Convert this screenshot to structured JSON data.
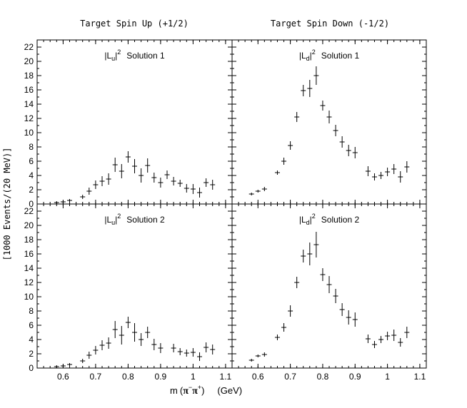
{
  "column_headers": [
    "Target Spin Up (+1/2)",
    "Target Spin Down (-1/2)"
  ],
  "chart_data": {
    "type": "scatter",
    "xlabel": "m(π⁻π⁺) (GeV)",
    "xlabel_parts": {
      "m": "m",
      "open": "(",
      "pi": "π",
      "minus": "−",
      "plus": "+",
      "close": ")",
      "unit": "(GeV)"
    },
    "ylabel": "[1000 Events/(20 MeV)]",
    "xlim": [
      0.52,
      1.12
    ],
    "ylim": [
      0,
      23
    ],
    "xticks": [
      0.6,
      0.7,
      0.8,
      0.9,
      1,
      1.1
    ],
    "xtick_labels": [
      "0.6",
      "0.7",
      "0.8",
      "0.9",
      "1",
      "1.1"
    ],
    "yticks": [
      0,
      2,
      4,
      6,
      8,
      10,
      12,
      14,
      16,
      18,
      20,
      22
    ],
    "ytick_labels": [
      "0",
      "2",
      "4",
      "6",
      "8",
      "10",
      "12",
      "14",
      "16",
      "18",
      "20",
      "22"
    ],
    "grid": false,
    "panels": [
      {
        "label_base": "|L",
        "label_sub": "u",
        "label_sup": "2",
        "label_rest": "Solution 1",
        "x": [
          0.58,
          0.6,
          0.62,
          0.66,
          0.68,
          0.7,
          0.72,
          0.74,
          0.76,
          0.78,
          0.8,
          0.82,
          0.84,
          0.86,
          0.88,
          0.9,
          0.92,
          0.94,
          0.96,
          0.98,
          1.0,
          1.02,
          1.04,
          1.06
        ],
        "y": [
          0.2,
          0.3,
          0.5,
          1.0,
          1.8,
          2.7,
          3.2,
          3.5,
          5.5,
          4.6,
          6.6,
          5.3,
          4.0,
          5.4,
          3.7,
          3.0,
          4.1,
          3.2,
          2.9,
          2.2,
          2.1,
          1.6,
          3.0,
          2.7
        ],
        "err": [
          0.2,
          0.2,
          0.2,
          0.3,
          0.5,
          0.6,
          0.7,
          0.8,
          1.0,
          1.0,
          0.8,
          1.0,
          1.0,
          1.0,
          0.7,
          0.7,
          0.6,
          0.6,
          0.5,
          0.6,
          0.7,
          0.7,
          0.6,
          0.7
        ]
      },
      {
        "label_base": "|L",
        "label_sub": "d",
        "label_sup": "2",
        "label_rest": "Solution 1",
        "x": [
          0.58,
          0.6,
          0.62,
          0.66,
          0.68,
          0.7,
          0.72,
          0.74,
          0.76,
          0.78,
          0.8,
          0.82,
          0.84,
          0.86,
          0.88,
          0.9,
          0.94,
          0.96,
          0.98,
          1.0,
          1.02,
          1.04,
          1.06
        ],
        "y": [
          1.4,
          1.8,
          2.1,
          4.4,
          6.0,
          8.2,
          12.2,
          15.9,
          16.2,
          18.0,
          13.8,
          12.2,
          10.3,
          8.7,
          7.5,
          7.2,
          4.6,
          3.8,
          4.0,
          4.5,
          4.9,
          3.8,
          5.2
        ],
        "err": [
          0.2,
          0.2,
          0.3,
          0.3,
          0.5,
          0.6,
          0.7,
          0.8,
          1.2,
          1.3,
          0.7,
          0.9,
          0.8,
          0.8,
          0.8,
          0.8,
          0.7,
          0.5,
          0.5,
          0.6,
          0.7,
          0.8,
          0.8
        ]
      },
      {
        "label_base": "|L",
        "label_sub": "u",
        "label_sup": "2",
        "label_rest": "Solution 2",
        "x": [
          0.58,
          0.6,
          0.62,
          0.66,
          0.68,
          0.7,
          0.72,
          0.74,
          0.76,
          0.78,
          0.8,
          0.82,
          0.84,
          0.86,
          0.88,
          0.9,
          0.94,
          0.96,
          0.98,
          1.0,
          1.02,
          1.04,
          1.06
        ],
        "y": [
          0.2,
          0.3,
          0.5,
          1.0,
          1.8,
          2.5,
          3.2,
          3.5,
          5.4,
          4.6,
          6.4,
          5.0,
          4.0,
          5.0,
          3.3,
          2.8,
          2.8,
          2.3,
          2.1,
          2.2,
          1.6,
          2.9,
          2.6
        ],
        "err": [
          0.2,
          0.2,
          0.2,
          0.3,
          0.5,
          0.6,
          0.7,
          0.8,
          1.2,
          1.3,
          0.8,
          1.3,
          0.9,
          0.8,
          0.8,
          0.7,
          0.6,
          0.5,
          0.5,
          0.6,
          0.6,
          0.7,
          0.7
        ]
      },
      {
        "label_base": "|L",
        "label_sub": "d",
        "label_sup": "2",
        "label_rest": "Solution 2",
        "x": [
          0.58,
          0.6,
          0.62,
          0.66,
          0.68,
          0.7,
          0.72,
          0.74,
          0.76,
          0.78,
          0.8,
          0.82,
          0.84,
          0.86,
          0.88,
          0.9,
          0.94,
          0.96,
          0.98,
          1.0,
          1.02,
          1.04,
          1.06
        ],
        "y": [
          1.1,
          1.7,
          1.9,
          4.3,
          5.7,
          8.0,
          12.0,
          15.7,
          16.0,
          17.3,
          13.1,
          11.7,
          10.1,
          8.2,
          7.1,
          6.8,
          4.1,
          3.3,
          4.0,
          4.5,
          4.6,
          3.6,
          5.0
        ],
        "err": [
          0.2,
          0.2,
          0.3,
          0.4,
          0.6,
          0.8,
          0.8,
          0.9,
          1.6,
          1.8,
          0.9,
          1.2,
          1.0,
          0.9,
          1.0,
          1.0,
          0.6,
          0.5,
          0.5,
          0.6,
          0.8,
          0.6,
          0.8
        ]
      }
    ]
  }
}
